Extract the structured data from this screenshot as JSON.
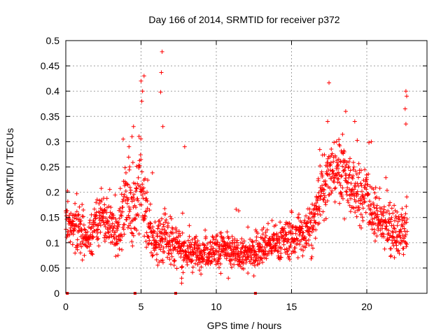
{
  "chart_data": {
    "type": "scatter",
    "title": "Day 166 of 2014, SRMTID for receiver p372",
    "xlabel": "GPS time / hours",
    "ylabel": "SRMTID / TECUs",
    "xlim": [
      0,
      24.0
    ],
    "ylim": [
      0,
      0.5
    ],
    "x_ticks": [
      0,
      5,
      10,
      15,
      20
    ],
    "x_tick_labels": [
      "0",
      "5",
      "10",
      "15",
      "20"
    ],
    "y_ticks": [
      0,
      0.05,
      0.1,
      0.15,
      0.2,
      0.25,
      0.3,
      0.35,
      0.4,
      0.45,
      0.5
    ],
    "y_tick_labels": [
      "0",
      "0.05",
      "0.1",
      "0.15",
      "0.2",
      "0.25",
      "0.3",
      "0.35",
      "0.4",
      "0.45",
      "0.5"
    ],
    "grid": true,
    "marker": "plus",
    "color": "#ff0000",
    "zero_markers_x": [
      0.1,
      4.6,
      7.3,
      12.6
    ],
    "trend": {
      "x": [
        0.0,
        0.5,
        1.0,
        1.5,
        2.0,
        2.5,
        3.0,
        3.5,
        4.0,
        4.5,
        5.0,
        5.5,
        6.0,
        6.5,
        7.0,
        7.5,
        8.0,
        9.0,
        10.0,
        11.0,
        12.0,
        13.0,
        14.0,
        15.0,
        16.0,
        16.5,
        17.0,
        17.5,
        18.0,
        18.5,
        19.0,
        19.5,
        20.0,
        20.5,
        21.0,
        21.5,
        22.0,
        22.5,
        22.7
      ],
      "center": [
        0.15,
        0.12,
        0.13,
        0.1,
        0.14,
        0.15,
        0.13,
        0.12,
        0.18,
        0.17,
        0.22,
        0.12,
        0.1,
        0.12,
        0.1,
        0.09,
        0.08,
        0.08,
        0.09,
        0.08,
        0.075,
        0.09,
        0.1,
        0.11,
        0.12,
        0.14,
        0.2,
        0.23,
        0.25,
        0.24,
        0.21,
        0.19,
        0.2,
        0.15,
        0.14,
        0.12,
        0.11,
        0.13,
        0.12
      ],
      "spread": [
        0.04,
        0.04,
        0.04,
        0.03,
        0.04,
        0.04,
        0.04,
        0.04,
        0.06,
        0.06,
        0.09,
        0.05,
        0.04,
        0.05,
        0.04,
        0.03,
        0.03,
        0.025,
        0.03,
        0.03,
        0.025,
        0.03,
        0.03,
        0.035,
        0.035,
        0.05,
        0.06,
        0.06,
        0.06,
        0.06,
        0.05,
        0.05,
        0.05,
        0.04,
        0.04,
        0.04,
        0.04,
        0.05,
        0.04
      ],
      "count": 1800
    },
    "outliers": [
      {
        "x": 5.0,
        "y": 0.42
      },
      {
        "x": 5.1,
        "y": 0.4
      },
      {
        "x": 5.2,
        "y": 0.43
      },
      {
        "x": 5.05,
        "y": 0.38
      },
      {
        "x": 6.4,
        "y": 0.478
      },
      {
        "x": 6.35,
        "y": 0.437
      },
      {
        "x": 6.3,
        "y": 0.398
      },
      {
        "x": 6.45,
        "y": 0.33
      },
      {
        "x": 7.9,
        "y": 0.29
      },
      {
        "x": 4.2,
        "y": 0.29
      },
      {
        "x": 4.5,
        "y": 0.33
      },
      {
        "x": 4.4,
        "y": 0.31
      },
      {
        "x": 22.6,
        "y": 0.4
      },
      {
        "x": 22.65,
        "y": 0.39
      },
      {
        "x": 22.55,
        "y": 0.365
      },
      {
        "x": 22.6,
        "y": 0.335
      },
      {
        "x": 18.6,
        "y": 0.36
      },
      {
        "x": 17.4,
        "y": 0.34
      },
      {
        "x": 19.2,
        "y": 0.34
      },
      {
        "x": 20.3,
        "y": 0.3
      },
      {
        "x": 7.7,
        "y": 0.02
      },
      {
        "x": 7.7,
        "y": 0.03
      },
      {
        "x": 12.1,
        "y": 0.04
      },
      {
        "x": 10.8,
        "y": 0.03
      }
    ]
  }
}
